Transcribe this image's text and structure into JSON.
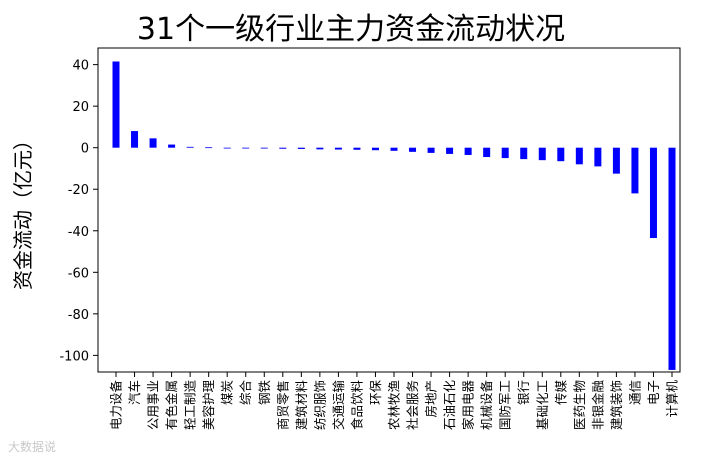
{
  "chart_data": {
    "type": "bar",
    "title": "31个一级行业主力资金流动状况",
    "ylabel": "资金流动（亿元）",
    "xlabel": "",
    "ylim": [
      -108,
      48
    ],
    "yticks": [
      40,
      20,
      0,
      -20,
      -40,
      -60,
      -80,
      -100
    ],
    "bar_color": "#0000ff",
    "grid": false,
    "categories": [
      "电力设备",
      "汽车",
      "公用事业",
      "有色金属",
      "轻工制造",
      "美容护理",
      "煤炭",
      "综合",
      "钢铁",
      "商贸零售",
      "建筑材料",
      "纺织服饰",
      "交通运输",
      "食品饮料",
      "环保",
      "农林牧渔",
      "社会服务",
      "房地产",
      "石油石化",
      "家用电器",
      "机械设备",
      "国防军工",
      "银行",
      "基础化工",
      "传媒",
      "医药生物",
      "非银金融",
      "建筑装饰",
      "通信",
      "电子",
      "计算机"
    ],
    "values": [
      41.5,
      8.0,
      4.5,
      1.5,
      0.4,
      0.2,
      -0.2,
      -0.3,
      -0.4,
      -0.5,
      -0.6,
      -0.8,
      -0.9,
      -1.0,
      -1.2,
      -1.5,
      -2.0,
      -2.5,
      -3.0,
      -3.5,
      -4.5,
      -5.0,
      -5.5,
      -6.0,
      -6.5,
      -8.0,
      -9.0,
      -12.5,
      -22.0,
      -43.5,
      -107.0
    ]
  },
  "watermark": "大数据说"
}
